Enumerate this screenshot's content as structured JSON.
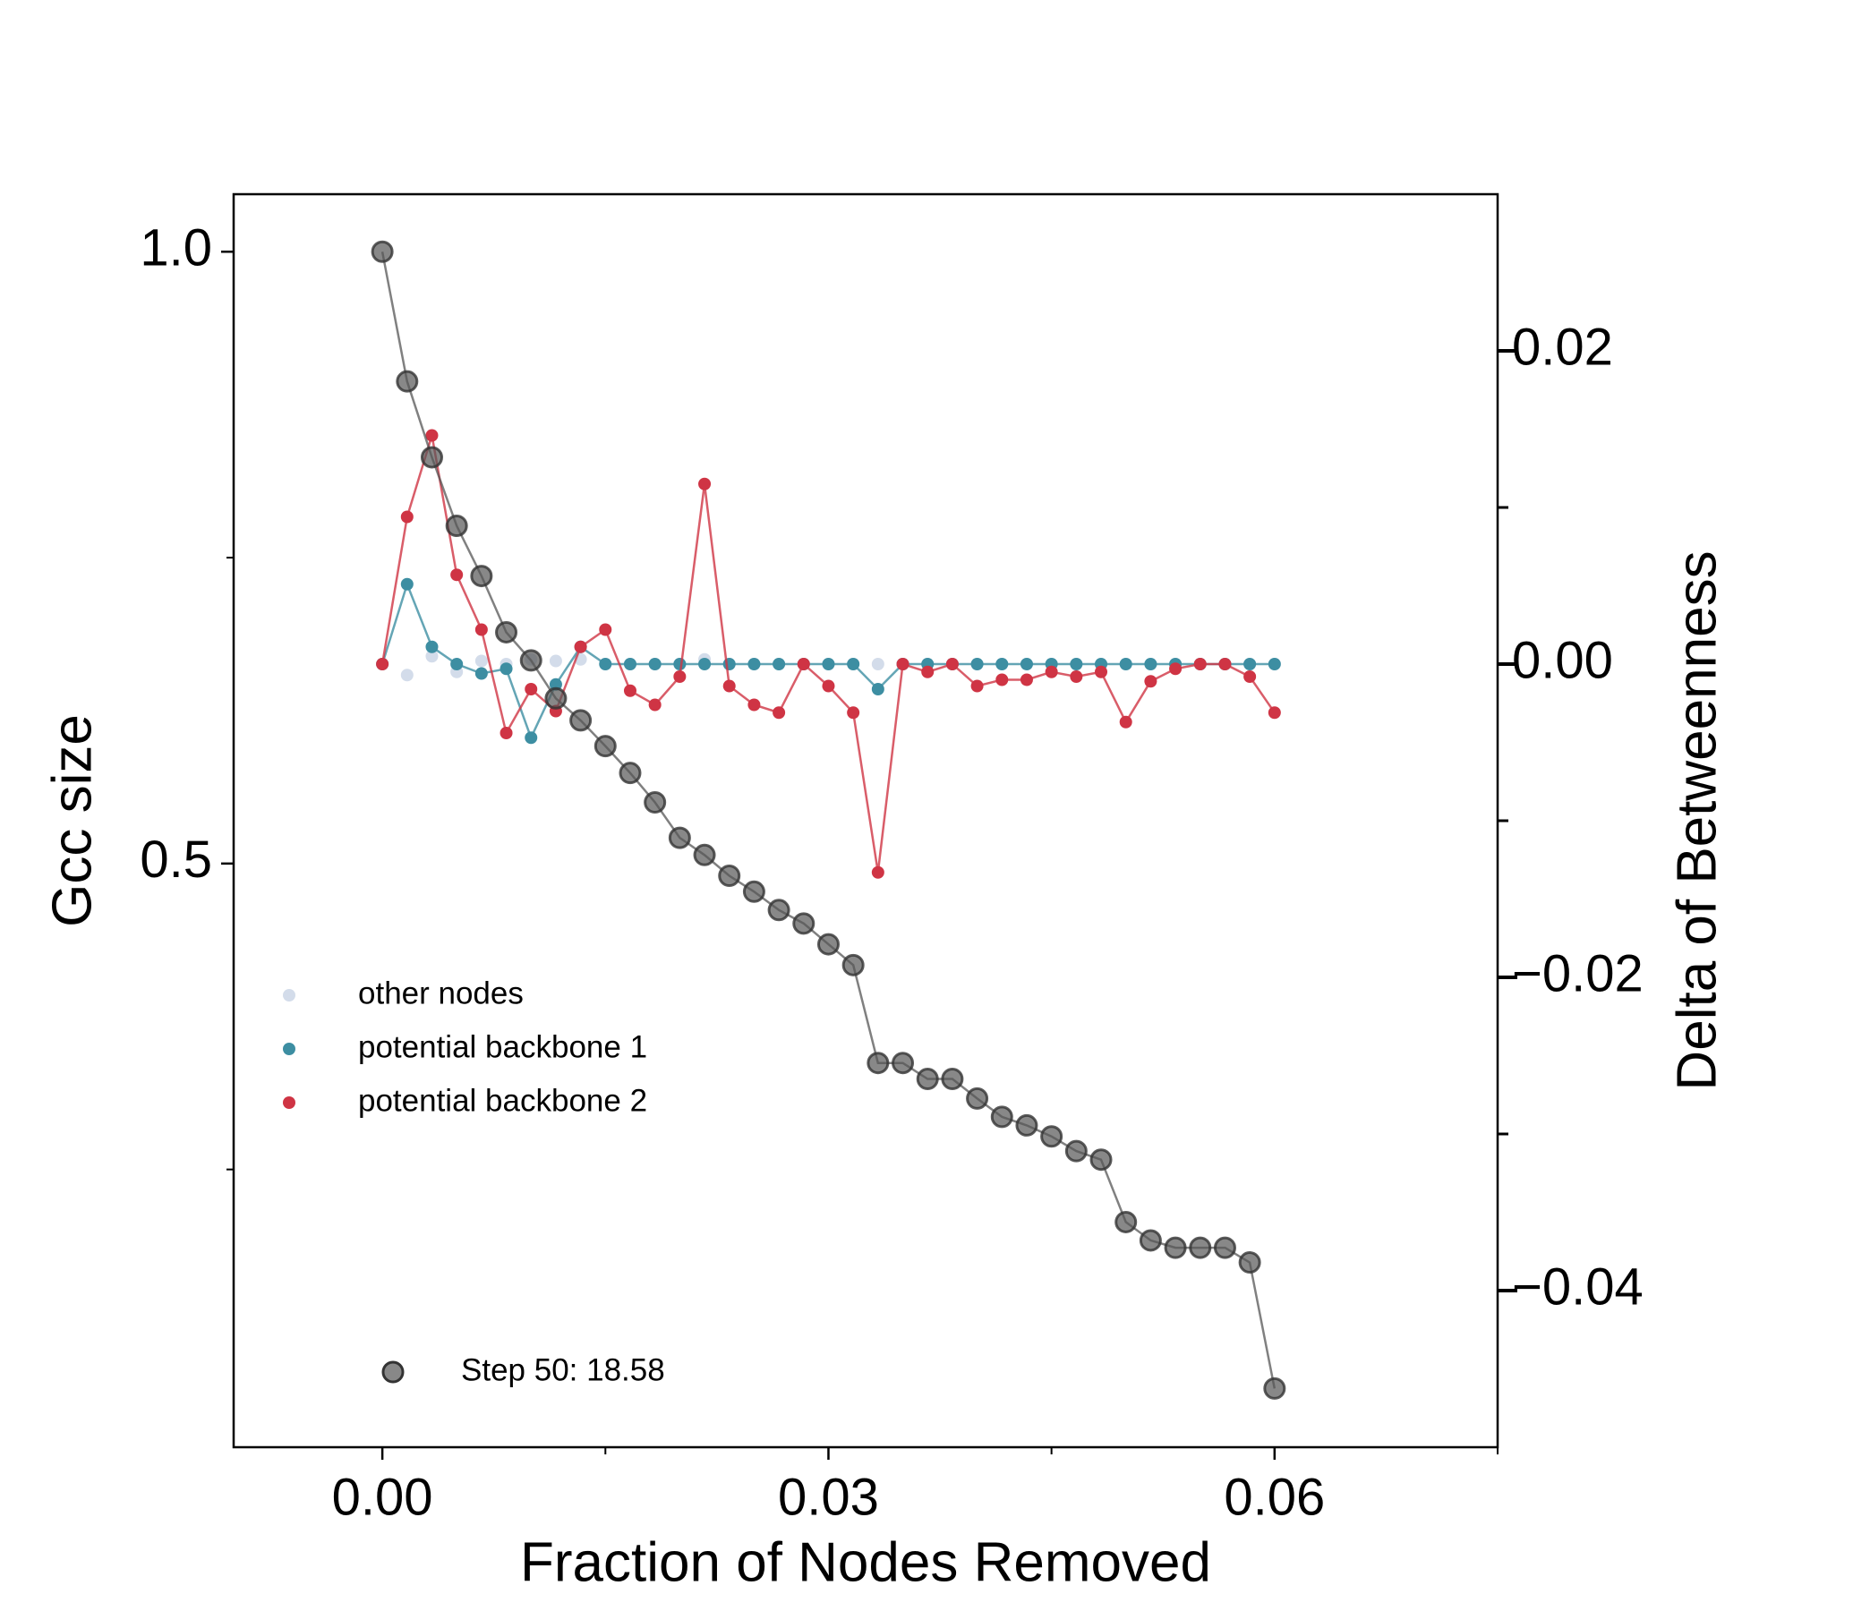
{
  "chart_data": {
    "type": "line",
    "xlabel": "Fraction of Nodes Removed",
    "ylabel": "Gcc size",
    "y2label": "Delta of Betweenness",
    "x": [
      0,
      0.001667,
      0.003333,
      0.005,
      0.006667,
      0.008333,
      0.01,
      0.011667,
      0.013333,
      0.015,
      0.016667,
      0.018333,
      0.02,
      0.021667,
      0.023333,
      0.025,
      0.026667,
      0.028333,
      0.03,
      0.031667,
      0.033333,
      0.035,
      0.036667,
      0.038333,
      0.04,
      0.041667,
      0.043333,
      0.045,
      0.046667,
      0.048333,
      0.05,
      0.051667,
      0.053333,
      0.055,
      0.056667,
      0.058333,
      0.06
    ],
    "series": [
      {
        "name": "other nodes",
        "color": "#d3dcea",
        "axis": "y2",
        "line": false,
        "values": [
          0,
          -0.0007,
          0.0005,
          -0.0005,
          0.0002,
          0,
          0.0003,
          0.0002,
          0.0003,
          0,
          0,
          0,
          0,
          0.0003,
          0,
          0,
          0,
          0,
          0,
          0,
          0,
          0,
          0,
          0,
          0,
          0,
          0,
          0,
          0,
          0,
          0,
          0,
          0,
          0,
          0,
          0,
          0
        ]
      },
      {
        "name": "potential backbone 1",
        "color": "#3d8ea2",
        "axis": "y2",
        "line": true,
        "values": [
          0,
          0.0051,
          0.0011,
          0,
          -0.0006,
          -0.0003,
          -0.0047,
          -0.0013,
          0.0011,
          0,
          0,
          0,
          0,
          0,
          0,
          0,
          0,
          0,
          0,
          0,
          -0.0016,
          0,
          0,
          0,
          0,
          0,
          0,
          0,
          0,
          0,
          0,
          0,
          0,
          0,
          0,
          0,
          0
        ]
      },
      {
        "name": "potential backbone 2",
        "color": "#cf3444",
        "axis": "y2",
        "line": true,
        "values": [
          0,
          0.0094,
          0.0146,
          0.0057,
          0.0022,
          -0.0044,
          -0.0016,
          -0.003,
          0.0011,
          0.0022,
          -0.0017,
          -0.0026,
          -0.0008,
          0.0115,
          -0.0014,
          -0.0026,
          -0.0031,
          0,
          -0.0014,
          -0.0031,
          -0.0133,
          0,
          -0.0005,
          0,
          -0.0014,
          -0.001,
          -0.001,
          -0.0005,
          -0.0008,
          -0.0005,
          -0.0037,
          -0.0011,
          -0.0003,
          0,
          0,
          -0.0008,
          -0.0031
        ]
      },
      {
        "name": "Step 50: 18.58",
        "color": "#555555",
        "axis": "y",
        "line": true,
        "values": [
          1.0,
          0.894,
          0.832,
          0.776,
          0.735,
          0.689,
          0.666,
          0.635,
          0.617,
          0.596,
          0.574,
          0.55,
          0.521,
          0.507,
          0.49,
          0.477,
          0.462,
          0.451,
          0.434,
          0.417,
          0.337,
          0.337,
          0.324,
          0.324,
          0.308,
          0.293,
          0.286,
          0.277,
          0.265,
          0.258,
          0.207,
          0.192,
          0.186,
          0.186,
          0.186,
          0.174,
          0.071
        ]
      }
    ],
    "xlim": [
      -0.01,
      0.075
    ],
    "xticks": [
      {
        "value": 0,
        "label": "0.00"
      },
      {
        "value": 0.03,
        "label": "0.03"
      },
      {
        "value": 0.06,
        "label": "0.06"
      }
    ],
    "minor_xticks": [
      0.015,
      0.045,
      0.075
    ],
    "ylim": [
      0.023,
      1.047
    ],
    "yticks": [
      0.5,
      {
        "value": 1,
        "label": "1.0"
      }
    ],
    "minor_yticks": [
      0.25,
      0.75
    ],
    "y2lim": [
      -0.05,
      0.03
    ],
    "y2ticks": [
      {
        "value": -0.04,
        "label": "−0.04"
      },
      {
        "value": -0.02,
        "label": "−0.02"
      },
      {
        "value": 0,
        "label": "0.00"
      },
      {
        "value": 0.02,
        "label": "0.02"
      }
    ],
    "minor_y2ticks": [
      -0.03,
      -0.01,
      0.01
    ],
    "grid": false
  }
}
